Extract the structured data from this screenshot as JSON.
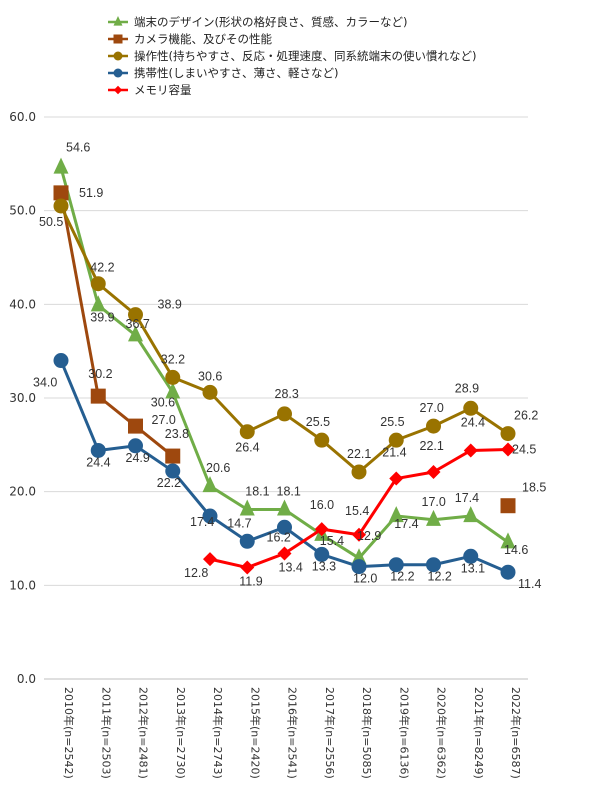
{
  "chart_data": {
    "type": "line",
    "title": "",
    "xlabel": "",
    "ylabel": "",
    "ylim": [
      0,
      60
    ],
    "yticks": [
      "0.0",
      "10.0",
      "20.0",
      "30.0",
      "40.0",
      "50.0",
      "60.0"
    ],
    "grid": true,
    "legend_position": "top",
    "categories": [
      "2010年(n=2542)",
      "2011年(n=2503)",
      "2012年(n=2481)",
      "2013年(n=2730)",
      "2014年(n=2743)",
      "2015年(n=2420)",
      "2016年(n=2541)",
      "2017年(n=2556)",
      "2018年(n=5085)",
      "2019年(n=6136)",
      "2020年(n=6362)",
      "2021年(n=8249)",
      "2022年(n=6587)"
    ],
    "series": [
      {
        "name": "端末のデザイン(形状の格好良さ、質感、カラーなど)",
        "color": "#70ad47",
        "marker": "triangle",
        "values": [
          54.6,
          39.9,
          36.7,
          30.6,
          20.6,
          18.1,
          18.1,
          15.4,
          12.9,
          17.4,
          17.0,
          17.4,
          14.6
        ],
        "labels": [
          "54.6",
          "39.9",
          "36.7",
          "30.6",
          "20.6",
          "18.1",
          "18.1",
          "15.4",
          "12.9",
          "17.4",
          "17.0",
          "17.4",
          "14.6"
        ]
      },
      {
        "name": "カメラ機能、及びその性能",
        "color": "#9e480e",
        "marker": "square",
        "values": [
          51.9,
          30.2,
          27.0,
          23.8,
          null,
          null,
          null,
          null,
          null,
          null,
          null,
          null,
          18.5
        ],
        "labels": [
          "51.9",
          "30.2",
          "27.0",
          "23.8",
          "",
          "",
          "",
          "",
          "",
          "",
          "",
          "",
          "18.5"
        ]
      },
      {
        "name": "操作性(持ちやすさ、反応・処理速度、同系統端末の使い慣れなど)",
        "color": "#997300",
        "marker": "circle",
        "values": [
          50.5,
          42.2,
          38.9,
          32.2,
          30.6,
          26.4,
          28.3,
          25.5,
          22.1,
          25.5,
          27.0,
          28.9,
          26.2
        ],
        "labels": [
          "50.5",
          "42.2",
          "38.9",
          "32.2",
          "30.6",
          "26.4",
          "28.3",
          "25.5",
          "22.1",
          "25.5",
          "27.0",
          "28.9",
          "26.2"
        ]
      },
      {
        "name": "携帯性(しまいやすさ、薄さ、軽さなど)",
        "color": "#255e91",
        "marker": "circle",
        "values": [
          34.0,
          24.4,
          24.9,
          22.2,
          17.4,
          14.7,
          16.2,
          13.3,
          12.0,
          12.2,
          12.2,
          13.1,
          11.4
        ],
        "labels": [
          "34.0",
          "24.4",
          "24.9",
          "22.2",
          "17.4",
          "14.7",
          "16.2",
          "13.3",
          "12.0",
          "12.2",
          "12.2",
          "13.1",
          "11.4"
        ]
      },
      {
        "name": "メモリ容量",
        "color": "#ff0000",
        "marker": "diamond",
        "values": [
          null,
          null,
          null,
          null,
          12.8,
          11.9,
          13.4,
          16.0,
          15.4,
          21.4,
          22.1,
          24.4,
          24.5
        ],
        "labels": [
          "",
          "",
          "",
          "",
          "12.8",
          "11.9",
          "13.4",
          "16.0",
          "15.4",
          "21.4",
          "22.1",
          "24.4",
          "24.5"
        ]
      }
    ]
  }
}
